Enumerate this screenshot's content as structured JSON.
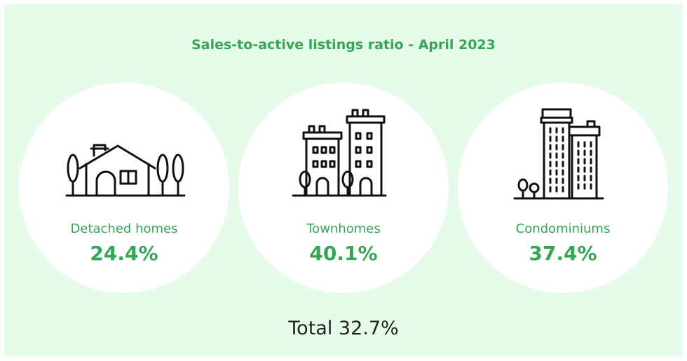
{
  "title": "Sales-to-active listings ratio - April 2023",
  "items": [
    {
      "label": "Detached homes",
      "value": "24.4%"
    },
    {
      "label": "Townhomes",
      "value": "40.1%"
    },
    {
      "label": "Condominiums",
      "value": "37.4%"
    }
  ],
  "total": "Total 32.7%"
}
